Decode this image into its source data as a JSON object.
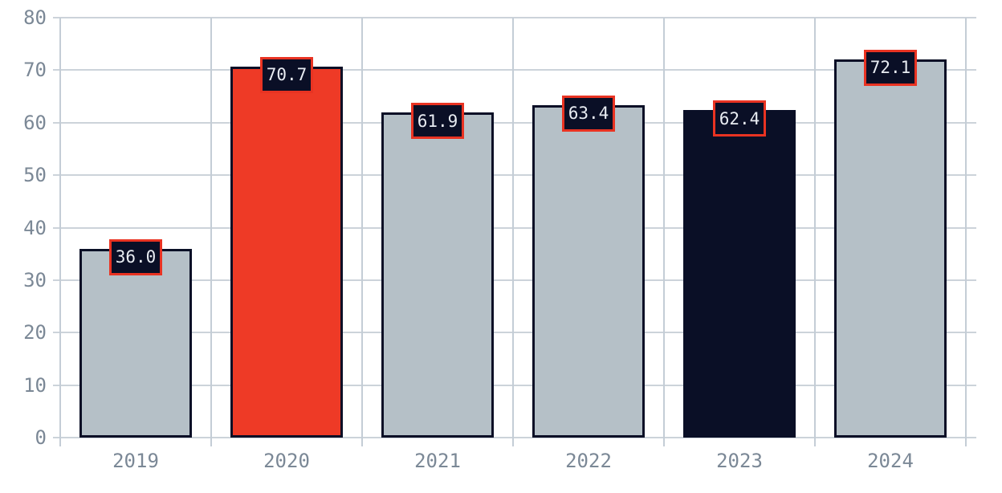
{
  "chart_data": {
    "type": "bar",
    "title": "",
    "xlabel": "",
    "ylabel": "",
    "categories": [
      "2019",
      "2020",
      "2021",
      "2022",
      "2023",
      "2024"
    ],
    "values": [
      36.0,
      70.7,
      61.9,
      63.4,
      62.4,
      72.1
    ],
    "value_labels": [
      "36.0",
      "70.7",
      "61.9",
      "63.4",
      "62.4",
      "72.1"
    ],
    "ylim": [
      0,
      80
    ],
    "yticks": [
      0,
      10,
      20,
      30,
      40,
      50,
      60,
      70,
      80
    ],
    "grid": true,
    "legend": false,
    "legend_position": "none",
    "bar_colors": [
      "#b5c0c7",
      "#ee3a26",
      "#b5c0c7",
      "#b5c0c7",
      "#0a0f26",
      "#b5c0c7"
    ],
    "colors": {
      "bar_gray": "#b5c0c7",
      "bar_red": "#ee3a26",
      "bar_navy": "#0a0f26",
      "bar_border": "#0a0f26",
      "label_box_bg": "#0a0f26",
      "label_box_border": "#e93322",
      "label_text": "#e8ecf2",
      "gridline_h": "#ccd3da",
      "gridline_v": "#c4cdd6",
      "tick_label": "#7b8896",
      "background": "#ffffff"
    }
  }
}
